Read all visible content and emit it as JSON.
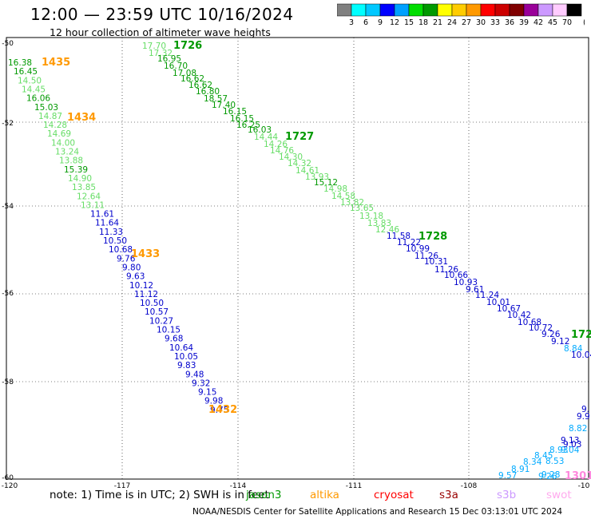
{
  "header": {
    "title": "12:00 — 23:59 UTC 10/16/2024",
    "subtitle": "12 hour collection of altimeter wave heights"
  },
  "colorbar": {
    "labels": [
      "3",
      "6",
      "9",
      "12",
      "15",
      "18",
      "21",
      "24",
      "27",
      "30",
      "33",
      "36",
      "39",
      "42",
      "45",
      "70"
    ],
    "unit": "(ft)",
    "colors": [
      "#808080",
      "#00ffff",
      "#00c8ff",
      "#0000ff",
      "#00a0ff",
      "#00dd00",
      "#009900",
      "#ffff00",
      "#ffcc00",
      "#ff9900",
      "#ff0000",
      "#cc0000",
      "#800000",
      "#990099",
      "#cc99ff",
      "#ffccff",
      "#000000"
    ]
  },
  "axes": {
    "lon_ticks": [
      "-120",
      "-117",
      "-114",
      "-111",
      "-108",
      "-10"
    ],
    "lat_ticks": [
      "-50",
      "-52",
      "-54",
      "-56",
      "-58",
      "-60"
    ]
  },
  "passes": [
    {
      "id": "1435",
      "color": "#ff9900"
    },
    {
      "id": "1434",
      "color": "#ff9900"
    },
    {
      "id": "1433",
      "color": "#ff9900"
    },
    {
      "id": "1432",
      "color": "#ff9900"
    },
    {
      "id": "1726",
      "color": "#009900"
    },
    {
      "id": "1727",
      "color": "#009900"
    },
    {
      "id": "1728",
      "color": "#009900"
    },
    {
      "id": "172",
      "color": "#009900"
    },
    {
      "id": "1301",
      "color": "#ff88dd"
    }
  ],
  "track_left": {
    "values": [
      "16.38",
      "16.45",
      "14.50",
      "14.45",
      "16.06",
      "15.03",
      "14.87",
      "14.28",
      "14.69",
      "14.00",
      "13.24",
      "13.88",
      "15.39",
      "14.90",
      "13.85",
      "12.64",
      "13.11",
      "11.61",
      "11.64",
      "11.33",
      "10.50",
      "10.68",
      "9.76",
      "9.80",
      "9.63",
      "10.12",
      "11.12",
      "10.50",
      "10.57",
      "10.27",
      "10.15",
      "9.68",
      "10.64",
      "10.05",
      "9.83",
      "9.48",
      "9.32",
      "9.15",
      "9.98",
      "9.75"
    ],
    "colors": [
      "#009900",
      "#009900",
      "#66dd66",
      "#66dd66",
      "#009900",
      "#009900",
      "#66dd66",
      "#66dd66",
      "#66dd66",
      "#66dd66",
      "#66dd66",
      "#66dd66",
      "#009900",
      "#66dd66",
      "#66dd66",
      "#66dd66",
      "#66dd66",
      "#0000cc",
      "#0000cc",
      "#0000cc",
      "#0000cc",
      "#0000cc",
      "#0000cc",
      "#0000cc",
      "#0000cc",
      "#0000cc",
      "#0000cc",
      "#0000cc",
      "#0000cc",
      "#0000cc",
      "#0000cc",
      "#0000cc",
      "#0000cc",
      "#0000cc",
      "#0000cc",
      "#0000cc",
      "#0000cc",
      "#0000cc",
      "#0000cc",
      "#0000cc"
    ]
  },
  "track_right": {
    "values": [
      "17.70",
      "17.32",
      "16.95",
      "16.70",
      "17.08",
      "16.62",
      "16.62",
      "16.80",
      "18.57",
      "17.40",
      "16.15",
      "16.15",
      "16.25",
      "16.03",
      "14.44",
      "14.26",
      "14.76",
      "14.30",
      "14.32",
      "14.61",
      "13.93",
      "15.12",
      "14.98",
      "14.58",
      "13.82",
      "13.65",
      "13.18",
      "13.83",
      "12.46",
      "11.58",
      "11.22",
      "10.99",
      "11.26",
      "10.31",
      "11.26",
      "10.66",
      "10.93",
      "9.61",
      "11.24",
      "10.01",
      "10.67",
      "10.42",
      "10.68",
      "10.72",
      "9.26",
      "9.12",
      "8.84",
      "10.04"
    ],
    "colors": [
      "#66dd66",
      "#66dd66",
      "#009900",
      "#009900",
      "#009900",
      "#009900",
      "#009900",
      "#009900",
      "#009900",
      "#009900",
      "#009900",
      "#009900",
      "#009900",
      "#009900",
      "#66dd66",
      "#66dd66",
      "#66dd66",
      "#66dd66",
      "#66dd66",
      "#66dd66",
      "#66dd66",
      "#009900",
      "#66dd66",
      "#66dd66",
      "#66dd66",
      "#66dd66",
      "#66dd66",
      "#66dd66",
      "#66dd66",
      "#0000cc",
      "#0000cc",
      "#0000cc",
      "#0000cc",
      "#0000cc",
      "#0000cc",
      "#0000cc",
      "#0000cc",
      "#0000cc",
      "#0000cc",
      "#0000cc",
      "#0000cc",
      "#0000cc",
      "#0000cc",
      "#0000cc",
      "#0000cc",
      "#0000cc",
      "#00aaff",
      "#0000cc"
    ]
  },
  "track_swot": {
    "values": [
      "9.57",
      "8.91",
      "8.34",
      "8.45",
      "8.53",
      "8.93",
      "9.04",
      "9.13",
      "9.03",
      "8.82",
      "9.9",
      "9."
    ],
    "colors": [
      "#00aaff",
      "#00aaff",
      "#00aaff",
      "#00aaff",
      "#00aaff",
      "#00aaff",
      "#00aaff",
      "#0000cc",
      "#0000cc",
      "#00aaff",
      "#0000cc",
      "#0000cc"
    ]
  },
  "track_bottom_right": {
    "values": [
      "9.26",
      "9.28"
    ],
    "colors": [
      "#00aaff",
      "#00aaff"
    ]
  },
  "footer": {
    "note": "note:  1) Time is in UTC;  2) SWH is in feet",
    "satellites": [
      {
        "name": "jason3",
        "color": "#009900"
      },
      {
        "name": "altika",
        "color": "#ff9900"
      },
      {
        "name": "cryosat",
        "color": "#ff0000"
      },
      {
        "name": "s3a",
        "color": "#990000"
      },
      {
        "name": "s3b",
        "color": "#cc99ff"
      },
      {
        "name": "swot",
        "color": "#ffaaee"
      }
    ],
    "credit": "NOAA/NESDIS Center for Satellite Applications and Research    15 Dec 03:13:01 UTC 2024"
  }
}
